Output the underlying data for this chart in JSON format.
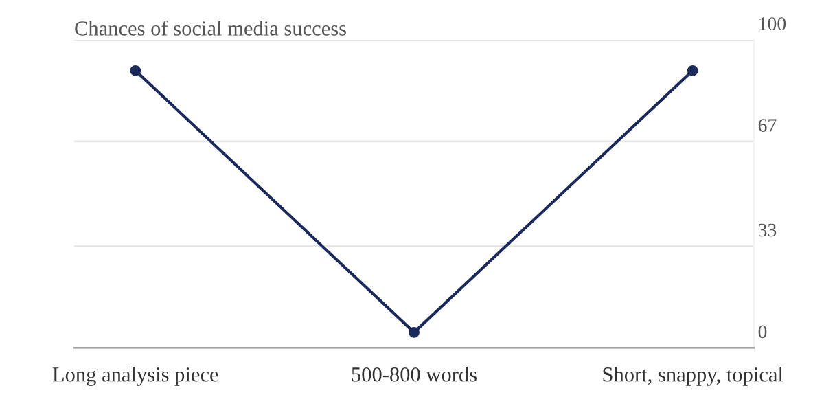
{
  "chart_data": {
    "type": "line",
    "title": "Chances of social media success",
    "categories": [
      "Long analysis piece",
      "500-800 words",
      "Short, snappy, topical"
    ],
    "series": [
      {
        "color": "#1b2a5c",
        "values": [
          90,
          5,
          90
        ]
      }
    ],
    "ylim": [
      0,
      100
    ],
    "yticks": [
      0,
      33,
      67,
      100
    ],
    "grid": "y",
    "marker": "circle",
    "line_style": "solid"
  }
}
